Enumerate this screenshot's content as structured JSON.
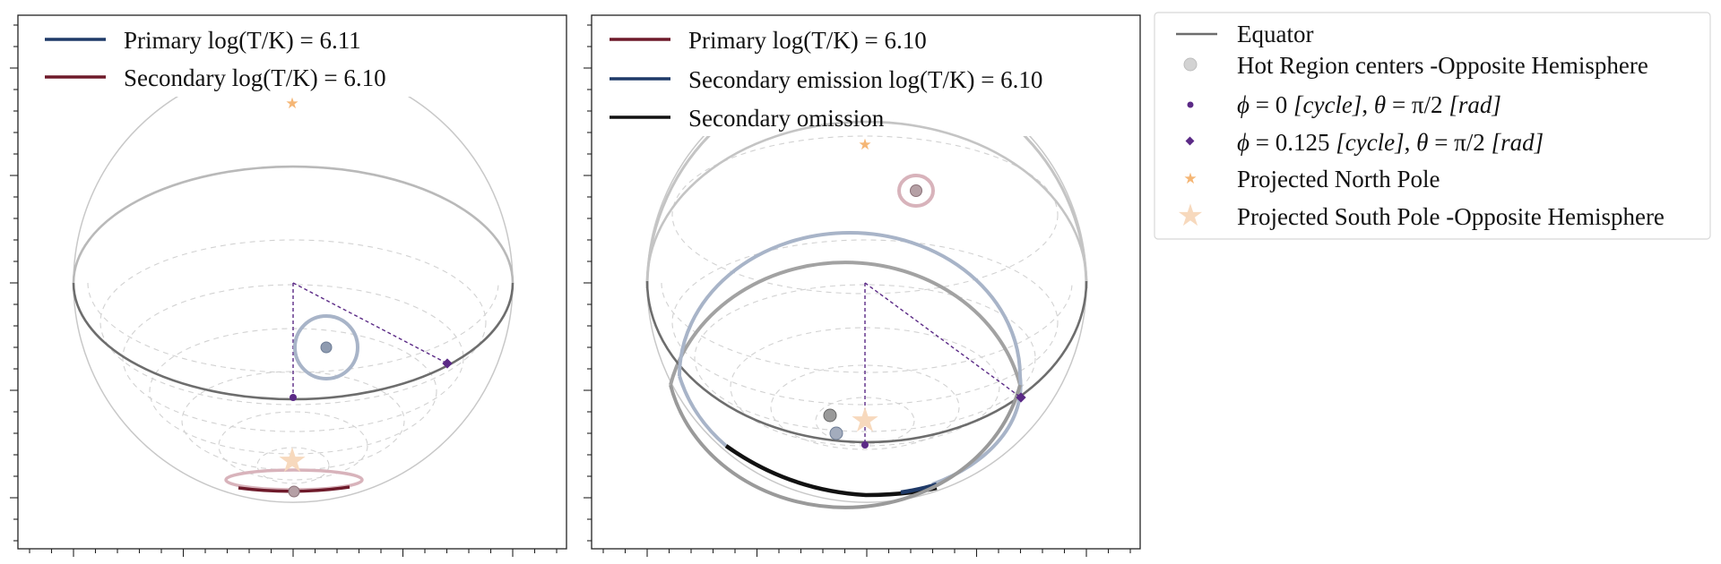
{
  "figure": {
    "colors": {
      "primary_left": "#1f3a68",
      "secondary_left": "#6e1a2a",
      "primary_right": "#6e1a2a",
      "secondary_right": "#1f3a68",
      "omission": "#111111",
      "equator": "#6d6d6d",
      "grid": "#d2d2d2",
      "outline": "#c8c8c8",
      "line_of_sight": "#5b2a86",
      "pole": "#f5b675",
      "pole_south": "#f7d9bd",
      "hot_center": "#a9a9a9"
    },
    "panels": [
      {
        "id": "left",
        "legend": [
          {
            "key": "primary",
            "label": "Primary log(T/K) = 6.11",
            "color": "#1f3a68"
          },
          {
            "key": "secondary",
            "label": "Secondary log(T/K) = 6.10",
            "color": "#6e1a2a"
          }
        ]
      },
      {
        "id": "right",
        "legend": [
          {
            "key": "primary",
            "label": "Primary log(T/K) = 6.10",
            "color": "#6e1a2a"
          },
          {
            "key": "secondary",
            "label": "Secondary emission log(T/K) = 6.10",
            "color": "#1f3a68"
          },
          {
            "key": "omission",
            "label": "Secondary omission",
            "color": "#111111"
          }
        ]
      }
    ],
    "side_legend": {
      "equator": "Equator",
      "hot_centers": "Hot Region centers -Opposite Hemisphere",
      "phase0": {
        "phi": "ϕ",
        "phi_value": " = 0 ",
        "phi_unit": "[cycle]",
        "theta": "θ",
        "theta_value": " = π/2 ",
        "theta_unit": "[rad]"
      },
      "phase125": {
        "phi": "ϕ",
        "phi_value": " = 0.125 ",
        "phi_unit": "[cycle]",
        "theta": "θ",
        "theta_value": " = π/2 ",
        "theta_unit": "[rad]"
      },
      "north_pole": "Projected North Pole",
      "south_pole": "Projected South Pole  -Opposite Hemisphere"
    }
  }
}
